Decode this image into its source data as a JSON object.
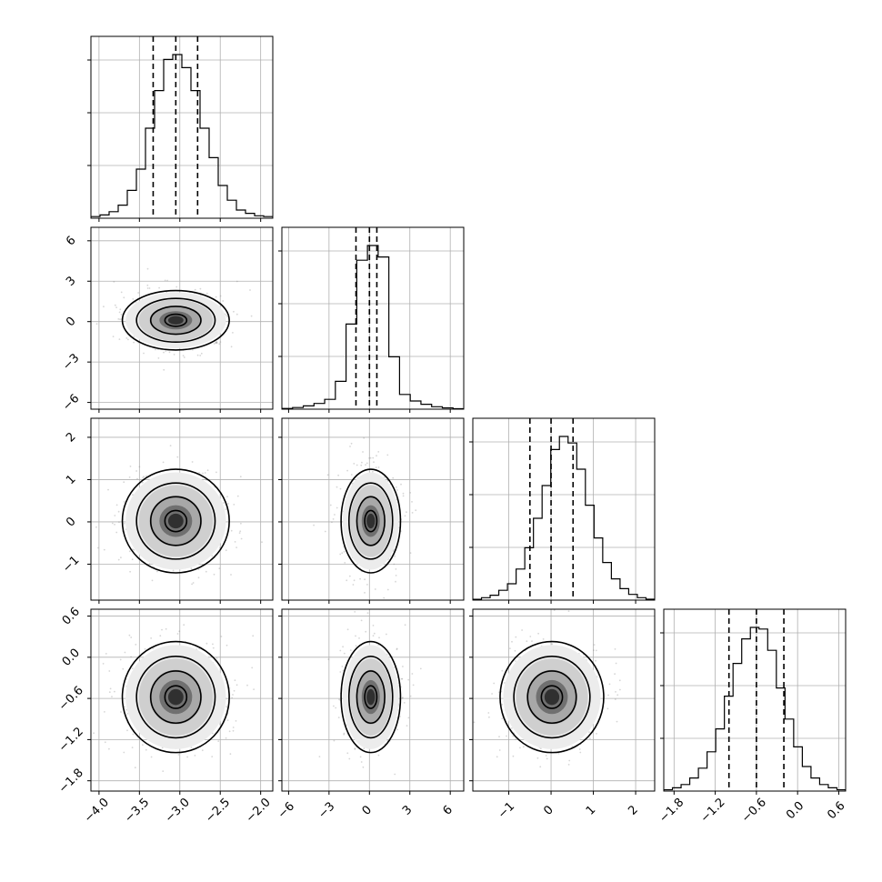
{
  "chart_data": {
    "type": "corner",
    "n_params": 4,
    "parameters": [
      {
        "range": [
          -4.1,
          -1.85
        ],
        "ticks": [
          "−4.0",
          "−3.5",
          "−3.0",
          "−2.5",
          "−2.0"
        ],
        "tick_values": [
          -4.0,
          -3.5,
          -3.0,
          -2.5,
          -2.0
        ],
        "quantiles": [
          -3.33,
          -3.05,
          -2.78
        ],
        "mean": -3.05,
        "sd": 0.27
      },
      {
        "range": [
          -6.5,
          7.0
        ],
        "ticks": [
          "−6",
          "−3",
          "0",
          "3",
          "6"
        ],
        "tick_values": [
          -6,
          -3,
          0,
          3,
          6
        ],
        "quantiles": [
          -1.0,
          0.0,
          0.55
        ],
        "mean": 0.1,
        "sd": 0.9
      },
      {
        "range": [
          -1.85,
          2.45
        ],
        "ticks": [
          "−1",
          "0",
          "1",
          "2"
        ],
        "tick_values": [
          -1,
          0,
          1,
          2
        ],
        "quantiles": [
          -0.5,
          0.0,
          0.52
        ],
        "mean": 0.02,
        "sd": 0.5
      },
      {
        "range": [
          -1.95,
          0.7
        ],
        "ticks": [
          "−1.8",
          "−1.2",
          "−0.6",
          "0.0",
          "0.6"
        ],
        "tick_values": [
          -1.8,
          -1.2,
          -0.6,
          0.0,
          0.6
        ],
        "quantiles": [
          -1.0,
          -0.6,
          -0.2
        ],
        "mean": -0.58,
        "sd": 0.33
      }
    ],
    "histograms": [
      [
        1,
        2,
        4,
        8,
        17,
        30,
        55,
        78,
        97,
        100,
        92,
        78,
        55,
        37,
        20,
        11,
        5,
        3,
        1.5,
        1
      ],
      [
        0.4,
        1,
        2,
        3.5,
        6,
        17,
        52,
        91,
        100,
        93,
        32,
        9,
        5,
        3,
        1.5,
        0.8,
        0.3
      ],
      [
        0.5,
        1.5,
        3,
        6,
        10,
        19,
        32,
        50,
        70,
        92,
        100,
        96,
        80,
        58,
        38,
        23,
        13,
        7,
        3.5,
        1.5,
        0.6
      ],
      [
        0.8,
        2,
        4,
        8,
        14,
        24,
        38,
        58,
        78,
        93,
        100,
        99,
        86,
        63,
        44,
        27,
        15,
        8,
        4,
        2,
        0.8
      ]
    ],
    "grid": true,
    "contours": "2d density contours with shaded histogram and scatter points"
  }
}
